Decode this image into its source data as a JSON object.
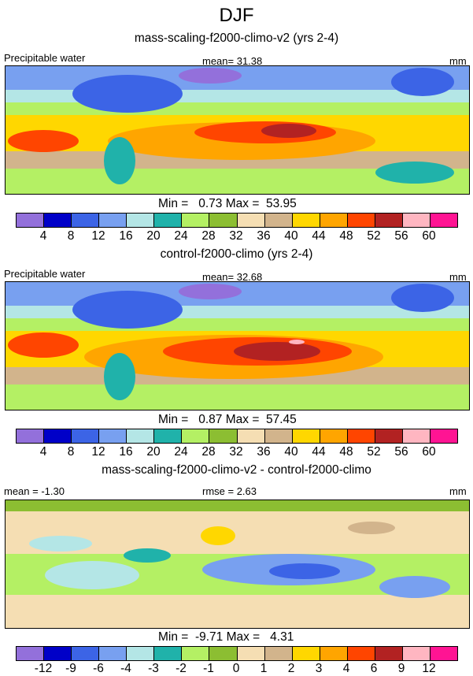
{
  "header": {
    "title": "DJF"
  },
  "panels": [
    {
      "case_title": "mass-scaling-f2000-climo-v2 (yrs 2-4)",
      "left": "Precipitable water",
      "center": "mean=  31.38",
      "right": "mm",
      "min_max": "Min =   0.73 Max =  53.95",
      "colorbar": "abs"
    },
    {
      "case_title": "control-f2000-climo (yrs 2-4)",
      "left": "Precipitable water",
      "center": "mean=  32.68",
      "right": "mm",
      "min_max": "Min =   0.87 Max =  57.45",
      "colorbar": "abs"
    },
    {
      "case_title": "mass-scaling-f2000-climo-v2 - control-f2000-climo",
      "left": "mean =  -1.30",
      "center": "rmse =   2.63",
      "right": "mm",
      "min_max": "Min =  -9.71 Max =   4.31",
      "colorbar": "diff"
    }
  ],
  "colorbars": {
    "abs": {
      "ticks": [
        "4",
        "8",
        "12",
        "16",
        "20",
        "24",
        "28",
        "32",
        "36",
        "40",
        "44",
        "48",
        "52",
        "56",
        "60"
      ],
      "colors": [
        "#9370db",
        "#0000c8",
        "#3c64e6",
        "#78a0f0",
        "#b4e6e6",
        "#20b2aa",
        "#b4f064",
        "#8cbe32",
        "#f5deb3",
        "#d2b48c",
        "#ffd700",
        "#ffa500",
        "#ff4500",
        "#b22222",
        "#ffb6c1",
        "#ff1493"
      ]
    },
    "diff": {
      "ticks": [
        "-12",
        "-9",
        "-6",
        "-4",
        "-3",
        "-2",
        "-1",
        "0",
        "1",
        "2",
        "3",
        "4",
        "6",
        "9",
        "12"
      ],
      "colors": [
        "#9370db",
        "#0000c8",
        "#3c64e6",
        "#78a0f0",
        "#b4e6e6",
        "#20b2aa",
        "#b4f064",
        "#8cbe32",
        "#f5deb3",
        "#d2b48c",
        "#ffd700",
        "#ffa500",
        "#ff4500",
        "#b22222",
        "#ffb6c1",
        "#ff1493"
      ]
    }
  }
}
